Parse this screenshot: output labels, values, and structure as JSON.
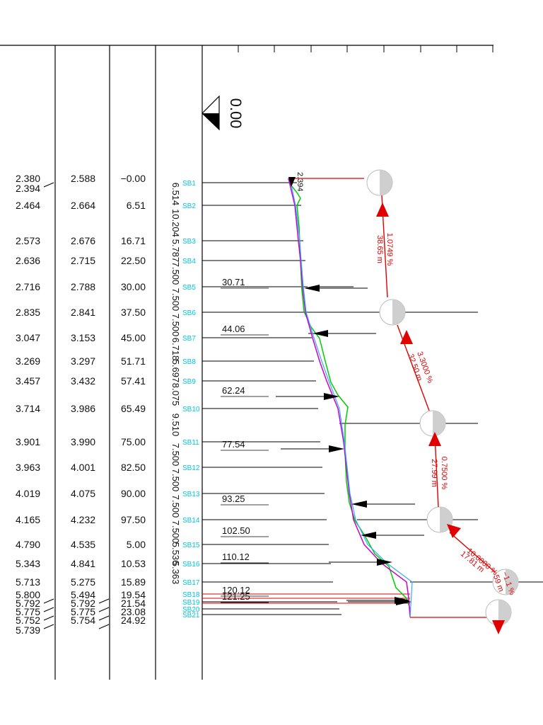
{
  "elevation_marker": "0.00",
  "rows": [
    {
      "c1": "2.380",
      "c2": "2.588",
      "c3": "−0.00",
      "station": "SB1"
    },
    {
      "c1": "2.394",
      "c2": "",
      "c3": "",
      "station": ""
    },
    {
      "c1": "2.464",
      "c2": "2.664",
      "c3": "6.51",
      "station": "SB2"
    },
    {
      "c1": "2.573",
      "c2": "2.676",
      "c3": "16.71",
      "station": "SB3"
    },
    {
      "c1": "2.636",
      "c2": "2.715",
      "c3": "22.50",
      "station": "SB4"
    },
    {
      "c1": "2.716",
      "c2": "2.788",
      "c3": "30.00",
      "station": "SB5"
    },
    {
      "c1": "2.835",
      "c2": "2.841",
      "c3": "37.50",
      "station": "SB6"
    },
    {
      "c1": "3.047",
      "c2": "3.153",
      "c3": "45.00",
      "station": "SB7"
    },
    {
      "c1": "3.269",
      "c2": "3.297",
      "c3": "51.71",
      "station": "SB8"
    },
    {
      "c1": "3.457",
      "c2": "3.432",
      "c3": "57.41",
      "station": "SB9"
    },
    {
      "c1": "3.714",
      "c2": "3.986",
      "c3": "65.49",
      "station": "SB10"
    },
    {
      "c1": "3.901",
      "c2": "3.990",
      "c3": "75.00",
      "station": "SB11"
    },
    {
      "c1": "3.963",
      "c2": "4.001",
      "c3": "82.50",
      "station": "SB12"
    },
    {
      "c1": "4.019",
      "c2": "4.075",
      "c3": "90.00",
      "station": "SB13"
    },
    {
      "c1": "4.165",
      "c2": "4.232",
      "c3": "97.50",
      "station": "SB14"
    },
    {
      "c1": "4.790",
      "c2": "4.535",
      "c3": "5.00",
      "station": "SB15"
    },
    {
      "c1": "5.343",
      "c2": "4.841",
      "c3": "10.53",
      "station": "SB16"
    },
    {
      "c1": "5.713",
      "c2": "5.275",
      "c3": "15.89",
      "station": "SB17"
    },
    {
      "c1": "5.800",
      "c2": "5.494",
      "c3": "19.54",
      "station": "SB18"
    },
    {
      "c1": "5.792",
      "c2": "5.792",
      "c3": "21.54",
      "station": "SB19"
    },
    {
      "c1": "5.775",
      "c2": "5.775",
      "c3": "23.08",
      "station": "SB20"
    },
    {
      "c1": "5.752",
      "c2": "5.754",
      "c3": "24.92",
      "station": "SB21"
    },
    {
      "c1": "5.739",
      "c2": "",
      "c3": "",
      "station": ""
    }
  ],
  "spacings": [
    "6.514",
    "10.204",
    "5.787",
    "7.500",
    "7.500",
    "7.500",
    "6.718",
    "5.697",
    "8.075",
    "9.510",
    "7.500",
    "7.500",
    "7.500",
    "7.500",
    "5.536",
    "5.363"
  ],
  "chainage_labels": [
    "30.71",
    "44.06",
    "62.24",
    "77.54",
    "93.25",
    "102.50",
    "110.12",
    "120.12",
    "121.25"
  ],
  "profile_start_label": "2.394",
  "grade_annotations": [
    {
      "percent": "1.0749 %",
      "length": "38.65 m"
    },
    {
      "percent": "3.3000 %",
      "length": "32.50 m"
    },
    {
      "percent": "0.7500 %",
      "length": "27.99 m"
    },
    {
      "percent": "10.0000 %",
      "length": "17.81 m"
    },
    {
      "percent": "−1.1 %",
      "length": "59 m"
    }
  ],
  "colors": {
    "ground_line": "#00cc00",
    "design_line": "#cc00cc",
    "alt_line": "#33aaff",
    "grade": "#e00000",
    "station": "#00c8e0",
    "ink": "#000000"
  }
}
